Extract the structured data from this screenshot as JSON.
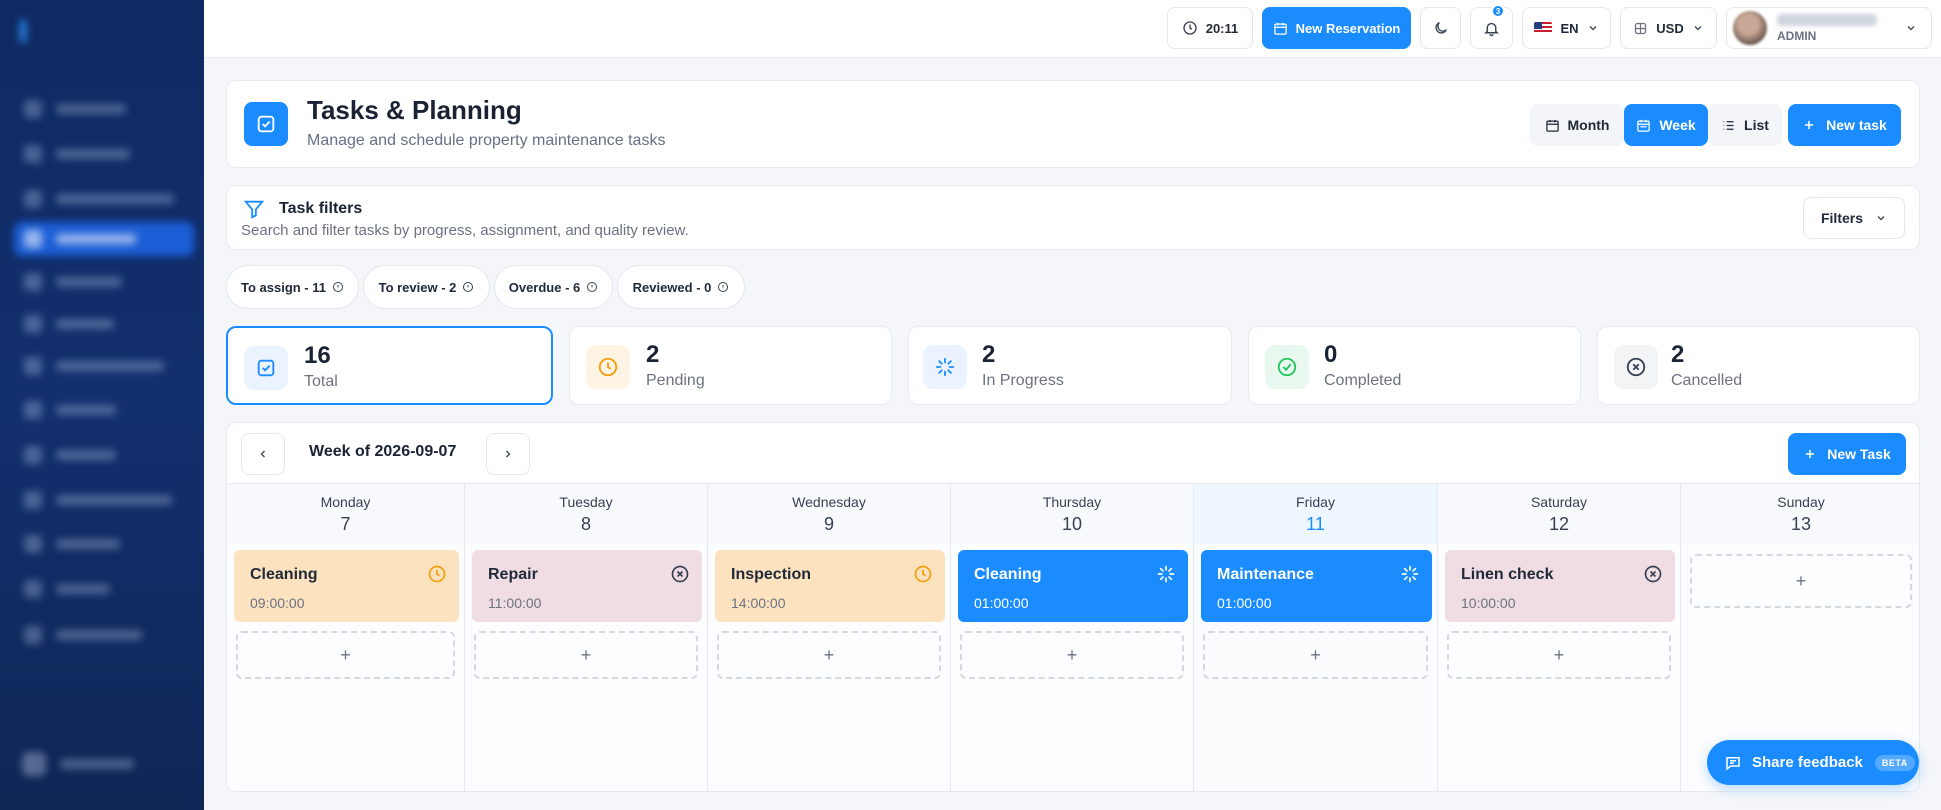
{
  "topbar": {
    "time": "20:11",
    "new_reservation": "New Reservation",
    "notifications_count": "3",
    "language": "EN",
    "currency": "USD",
    "user_role": "ADMIN"
  },
  "header": {
    "title": "Tasks & Planning",
    "subtitle": "Manage and schedule property maintenance tasks",
    "views": [
      "Month",
      "Week",
      "List"
    ],
    "active_view": "Week",
    "new_task": "New task"
  },
  "filters": {
    "title": "Task filters",
    "subtitle": "Search and filter tasks by progress, assignment, and quality review.",
    "button": "Filters",
    "chips": [
      "To assign - 11",
      "To review - 2",
      "Overdue - 6",
      "Reviewed - 0"
    ]
  },
  "stats": [
    {
      "value": "16",
      "label": "Total",
      "icon": "clipboard-check-icon",
      "color": "#1a8cff"
    },
    {
      "value": "2",
      "label": "Pending",
      "icon": "clock-icon",
      "color": "#f59e0b"
    },
    {
      "value": "2",
      "label": "In Progress",
      "icon": "loader-icon",
      "color": "#1a8cff"
    },
    {
      "value": "0",
      "label": "Completed",
      "icon": "check-circle-icon",
      "color": "#22c55e"
    },
    {
      "value": "2",
      "label": "Cancelled",
      "icon": "x-circle-icon",
      "color": "#6b7280"
    }
  ],
  "calendar": {
    "week_label": "Week of 2026-09-07",
    "new_task": "New Task",
    "days": [
      {
        "name": "Monday",
        "num": "7"
      },
      {
        "name": "Tuesday",
        "num": "8"
      },
      {
        "name": "Wednesday",
        "num": "9"
      },
      {
        "name": "Thursday",
        "num": "10"
      },
      {
        "name": "Friday",
        "num": "11"
      },
      {
        "name": "Saturday",
        "num": "12"
      },
      {
        "name": "Sunday",
        "num": "13"
      }
    ],
    "tasks": [
      {
        "name": "Cleaning",
        "time": "09:00:00",
        "status": "pending"
      },
      {
        "name": "Repair",
        "time": "11:00:00",
        "status": "cancelled"
      },
      {
        "name": "Inspection",
        "time": "14:00:00",
        "status": "pending"
      },
      {
        "name": "Cleaning",
        "time": "01:00:00",
        "status": "in-progress"
      },
      {
        "name": "Maintenance",
        "time": "01:00:00",
        "status": "in-progress"
      },
      {
        "name": "Linen check",
        "time": "10:00:00",
        "status": "cancelled"
      }
    ],
    "add_symbol": "+"
  },
  "feedback": {
    "label": "Share feedback",
    "badge": "BETA"
  },
  "colors": {
    "accent": "#1a8cff",
    "pending_bg": "#fde2bf",
    "cancelled_bg": "#efdde3",
    "sidebar": "#0f2a62"
  }
}
